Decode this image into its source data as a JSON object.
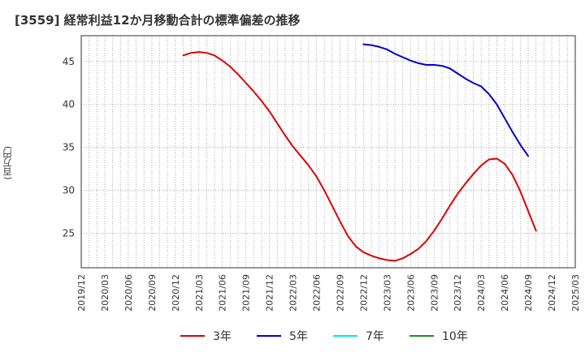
{
  "title": "[3559]  経常利益12か月移動合計の標準偏差の推移",
  "chart_data": {
    "type": "line",
    "ylabel": "(百万円)",
    "ylim": [
      21,
      48
    ],
    "yticks": [
      25,
      30,
      35,
      40,
      45
    ],
    "xlim": [
      "2019-12",
      "2025-03"
    ],
    "xticks": [
      "2019/12",
      "2020/03",
      "2020/06",
      "2020/09",
      "2020/12",
      "2021/03",
      "2021/06",
      "2021/09",
      "2021/12",
      "2022/03",
      "2022/06",
      "2022/09",
      "2022/12",
      "2023/03",
      "2023/06",
      "2023/09",
      "2023/12",
      "2024/03",
      "2024/06",
      "2024/09",
      "2024/12",
      "2025/03"
    ],
    "grid": true,
    "legend_position": "bottom",
    "series": [
      {
        "name": "3年",
        "color": "#dd0000",
        "points": [
          [
            "2021-01",
            45.7
          ],
          [
            "2021-02",
            46.0
          ],
          [
            "2021-03",
            46.1
          ],
          [
            "2021-04",
            46.0
          ],
          [
            "2021-05",
            45.7
          ],
          [
            "2021-06",
            45.1
          ],
          [
            "2021-07",
            44.4
          ],
          [
            "2021-08",
            43.5
          ],
          [
            "2021-09",
            42.5
          ],
          [
            "2021-10",
            41.5
          ],
          [
            "2021-11",
            40.4
          ],
          [
            "2021-12",
            39.2
          ],
          [
            "2022-01",
            37.8
          ],
          [
            "2022-02",
            36.4
          ],
          [
            "2022-03",
            35.1
          ],
          [
            "2022-04",
            34.0
          ],
          [
            "2022-05",
            32.9
          ],
          [
            "2022-06",
            31.6
          ],
          [
            "2022-07",
            30.0
          ],
          [
            "2022-08",
            28.2
          ],
          [
            "2022-09",
            26.4
          ],
          [
            "2022-10",
            24.7
          ],
          [
            "2022-11",
            23.5
          ],
          [
            "2022-12",
            22.8
          ],
          [
            "2023-01",
            22.4
          ],
          [
            "2023-02",
            22.1
          ],
          [
            "2023-03",
            21.9
          ],
          [
            "2023-04",
            21.8
          ],
          [
            "2023-05",
            22.1
          ],
          [
            "2023-06",
            22.6
          ],
          [
            "2023-07",
            23.2
          ],
          [
            "2023-08",
            24.1
          ],
          [
            "2023-09",
            25.3
          ],
          [
            "2023-10",
            26.7
          ],
          [
            "2023-11",
            28.2
          ],
          [
            "2023-12",
            29.6
          ],
          [
            "2024-01",
            30.8
          ],
          [
            "2024-02",
            31.9
          ],
          [
            "2024-03",
            32.9
          ],
          [
            "2024-04",
            33.6
          ],
          [
            "2024-05",
            33.7
          ],
          [
            "2024-06",
            33.1
          ],
          [
            "2024-07",
            31.8
          ],
          [
            "2024-08",
            29.9
          ],
          [
            "2024-09",
            27.6
          ],
          [
            "2024-10",
            25.3
          ]
        ]
      },
      {
        "name": "5年",
        "color": "#0000cc",
        "points": [
          [
            "2022-12",
            47.0
          ],
          [
            "2023-01",
            46.9
          ],
          [
            "2023-02",
            46.7
          ],
          [
            "2023-03",
            46.4
          ],
          [
            "2023-04",
            45.9
          ],
          [
            "2023-05",
            45.5
          ],
          [
            "2023-06",
            45.1
          ],
          [
            "2023-07",
            44.8
          ],
          [
            "2023-08",
            44.6
          ],
          [
            "2023-09",
            44.6
          ],
          [
            "2023-10",
            44.5
          ],
          [
            "2023-11",
            44.2
          ],
          [
            "2023-12",
            43.6
          ],
          [
            "2024-01",
            43.0
          ],
          [
            "2024-02",
            42.5
          ],
          [
            "2024-03",
            42.1
          ],
          [
            "2024-04",
            41.2
          ],
          [
            "2024-05",
            40.0
          ],
          [
            "2024-06",
            38.4
          ],
          [
            "2024-07",
            36.8
          ],
          [
            "2024-08",
            35.3
          ],
          [
            "2024-09",
            34.0
          ]
        ]
      },
      {
        "name": "7年",
        "color": "#00e5ee",
        "points": []
      },
      {
        "name": "10年",
        "color": "#228b22",
        "points": []
      }
    ]
  }
}
